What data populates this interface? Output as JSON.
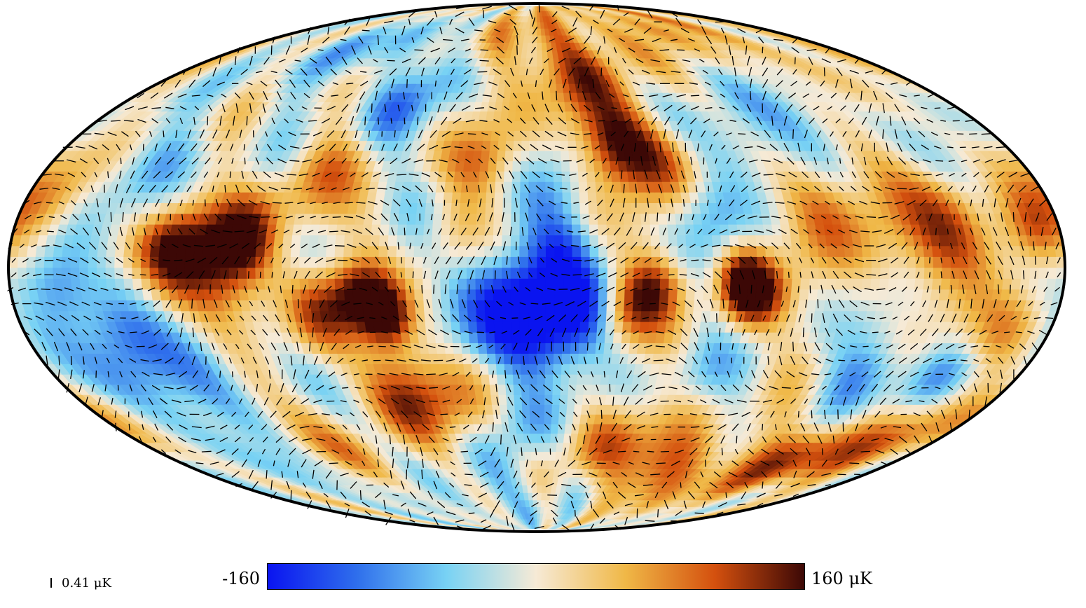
{
  "colorbar": {
    "min_label": "-160",
    "max_label": "160 μK",
    "range": [
      -160,
      160
    ],
    "colors": [
      "#0a14f0",
      "#2f6fec",
      "#78d2f4",
      "#f6ead6",
      "#f0b847",
      "#d4500e",
      "#3c0806"
    ]
  },
  "polarization_scale": {
    "label": "0.41 μK",
    "value": 0.41
  },
  "map": {
    "projection": "mollweide",
    "field": "temperature",
    "overlay": "polarization headless vectors",
    "blobs": [
      {
        "lon": 10,
        "lat": -8,
        "v": -160,
        "r": 11
      },
      {
        "lon": -15,
        "lat": -12,
        "v": -110,
        "r": 9
      },
      {
        "lon": 0,
        "lat": -20,
        "v": -120,
        "r": 10
      },
      {
        "lon": -8,
        "lat": 5,
        "v": -80,
        "r": 8
      },
      {
        "lon": -75,
        "lat": -8,
        "v": 140,
        "r": 7
      },
      {
        "lon": -40,
        "lat": -5,
        "v": 110,
        "r": 7
      },
      {
        "lon": -30,
        "lat": -12,
        "v": 80,
        "r": 7
      },
      {
        "lon": -70,
        "lat": -3,
        "v": 120,
        "r": 6
      },
      {
        "lon": 60,
        "lat": -8,
        "v": 150,
        "r": 7
      },
      {
        "lon": 52,
        "lat": -14,
        "v": 150,
        "r": 6
      },
      {
        "lon": 75,
        "lat": -12,
        "v": 100,
        "r": 8
      },
      {
        "lon": 110,
        "lat": 0,
        "v": 140,
        "r": 11
      },
      {
        "lon": 100,
        "lat": 8,
        "v": 120,
        "r": 8
      },
      {
        "lon": 125,
        "lat": 5,
        "v": 110,
        "r": 8
      },
      {
        "lon": 165,
        "lat": -5,
        "v": -130,
        "r": 9
      },
      {
        "lon": 150,
        "lat": -30,
        "v": -120,
        "r": 11
      },
      {
        "lon": 120,
        "lat": -25,
        "v": -80,
        "r": 9
      },
      {
        "lon": 140,
        "lat": 30,
        "v": -60,
        "r": 9
      },
      {
        "lon": 60,
        "lat": 45,
        "v": -70,
        "r": 8
      },
      {
        "lon": 45,
        "lat": 58,
        "v": -50,
        "r": 8
      },
      {
        "lon": -30,
        "lat": 35,
        "v": 140,
        "r": 8
      },
      {
        "lon": -45,
        "lat": 30,
        "v": 90,
        "r": 9
      },
      {
        "lon": -20,
        "lat": 55,
        "v": 80,
        "r": 10
      },
      {
        "lon": 20,
        "lat": 30,
        "v": 80,
        "r": 8
      },
      {
        "lon": -100,
        "lat": 15,
        "v": 80,
        "r": 10
      },
      {
        "lon": -140,
        "lat": 5,
        "v": 90,
        "r": 12
      },
      {
        "lon": -170,
        "lat": 10,
        "v": 130,
        "r": 8
      },
      {
        "lon": -120,
        "lat": 20,
        "v": 60,
        "r": 10
      },
      {
        "lon": -150,
        "lat": -30,
        "v": -90,
        "r": 8
      },
      {
        "lon": -120,
        "lat": -30,
        "v": -80,
        "r": 9
      },
      {
        "lon": -130,
        "lat": -55,
        "v": 140,
        "r": 9
      },
      {
        "lon": -70,
        "lat": -60,
        "v": 110,
        "r": 10
      },
      {
        "lon": -30,
        "lat": -50,
        "v": 90,
        "r": 9
      },
      {
        "lon": -80,
        "lat": 35,
        "v": -70,
        "r": 10
      },
      {
        "lon": -110,
        "lat": 45,
        "v": -60,
        "r": 10
      },
      {
        "lon": 30,
        "lat": -40,
        "v": 70,
        "r": 10
      },
      {
        "lon": 50,
        "lat": -35,
        "v": 100,
        "r": 9
      },
      {
        "lon": 5,
        "lat": -45,
        "v": -70,
        "r": 9
      },
      {
        "lon": 100,
        "lat": -55,
        "v": 70,
        "r": 10
      },
      {
        "lon": 120,
        "lat": -60,
        "v": -90,
        "r": 8
      },
      {
        "lon": 80,
        "lat": 25,
        "v": 70,
        "r": 9
      },
      {
        "lon": 170,
        "lat": 20,
        "v": 70,
        "r": 8
      },
      {
        "lon": -60,
        "lat": 15,
        "v": -60,
        "r": 8
      },
      {
        "lon": -5,
        "lat": 20,
        "v": -50,
        "r": 8
      },
      {
        "lon": 30,
        "lat": 10,
        "v": 40,
        "r": 7
      },
      {
        "lon": -60,
        "lat": -30,
        "v": -40,
        "r": 8
      },
      {
        "lon": -165,
        "lat": -20,
        "v": 60,
        "r": 9
      },
      {
        "lon": 0,
        "lat": 72,
        "v": 60,
        "r": 14
      },
      {
        "lon": 100,
        "lat": 70,
        "v": -60,
        "r": 12
      },
      {
        "lon": -120,
        "lat": 70,
        "v": 50,
        "r": 12
      },
      {
        "lon": 20,
        "lat": -70,
        "v": -40,
        "r": 12
      },
      {
        "lon": -170,
        "lat": -45,
        "v": 80,
        "r": 9
      }
    ]
  }
}
